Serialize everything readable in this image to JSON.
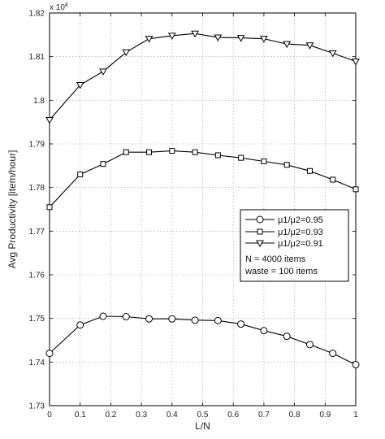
{
  "chart_data": {
    "type": "line",
    "xlabel": "L/N",
    "ylabel": "Avg Productivity [item/hour]",
    "y_exponent": "x 10",
    "y_exponent_power": "4",
    "xlim": [
      0,
      1
    ],
    "ylim": [
      1.73,
      1.82
    ],
    "x_ticks": [
      "0",
      "0.1",
      "0.2",
      "0.3",
      "0.4",
      "0.5",
      "0.6",
      "0.7",
      "0.8",
      "0.9",
      "1"
    ],
    "y_ticks": [
      "1.73",
      "1.74",
      "1.75",
      "1.76",
      "1.77",
      "1.78",
      "1.79",
      "1.8",
      "1.81",
      "1.82"
    ],
    "grid": true,
    "legend_position": "center-right",
    "x": [
      0,
      0.1,
      0.175,
      0.25,
      0.325,
      0.4,
      0.475,
      0.55,
      0.625,
      0.7,
      0.775,
      0.85,
      0.925,
      1
    ],
    "series": [
      {
        "name": "μ1/μ2=0.95",
        "marker": "circle",
        "values": [
          1.742,
          1.7485,
          1.7505,
          1.7504,
          1.7499,
          1.7499,
          1.7496,
          1.7495,
          1.7487,
          1.7472,
          1.7459,
          1.744,
          1.742,
          1.7394
        ]
      },
      {
        "name": "μ1/μ2=0.93",
        "marker": "square",
        "values": [
          1.7755,
          1.783,
          1.7854,
          1.7881,
          1.7881,
          1.7884,
          1.7881,
          1.7874,
          1.7868,
          1.786,
          1.7852,
          1.7838,
          1.7818,
          1.7796
        ]
      },
      {
        "name": "μ1/μ2=0.91",
        "marker": "triangle-down",
        "values": [
          1.7955,
          1.8035,
          1.8066,
          1.811,
          1.8141,
          1.8148,
          1.8153,
          1.8144,
          1.8143,
          1.8141,
          1.8129,
          1.8126,
          1.8108,
          1.8089
        ]
      }
    ],
    "annotations": [
      "N = 4000 items",
      "waste = 100 items"
    ]
  }
}
